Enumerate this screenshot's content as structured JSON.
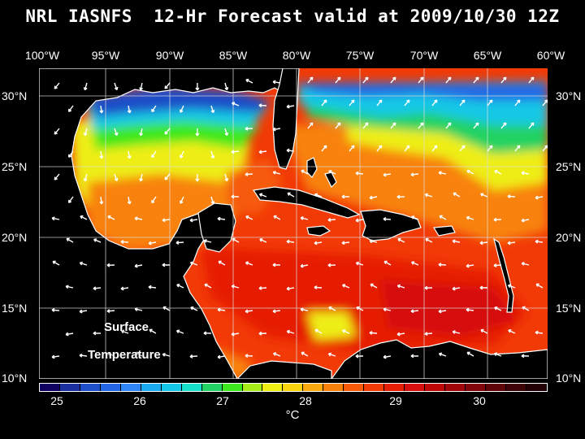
{
  "title": "NRL IASNFS  12-Hr Forecast valid at 2009/10/30 12Z",
  "longitude_labels": [
    "100°W",
    "95°W",
    "90°W",
    "85°W",
    "80°W",
    "75°W",
    "70°W",
    "65°W",
    "60°W"
  ],
  "latitude_labels": [
    "30°N",
    "25°N",
    "20°N",
    "15°N",
    "10°N"
  ],
  "map_labels": {
    "line1": "Surface",
    "line2": "Temperature"
  },
  "colorbar": {
    "colors": [
      "#100060",
      "#1c2f9e",
      "#1e4ec8",
      "#2467e6",
      "#2f86f6",
      "#1aaaf0",
      "#12c8e6",
      "#16e0c8",
      "#22d262",
      "#3ee81e",
      "#a6ec16",
      "#eeee12",
      "#f8d40e",
      "#faaa0c",
      "#f8820a",
      "#f65a08",
      "#f23a06",
      "#e61e06",
      "#d60e0e",
      "#be0808",
      "#a0060a",
      "#80040a",
      "#5e0408",
      "#3e0206",
      "#220104"
    ],
    "tick_labels": [
      "25",
      "26",
      "27",
      "28",
      "29",
      "30"
    ],
    "unit": "°C"
  }
}
